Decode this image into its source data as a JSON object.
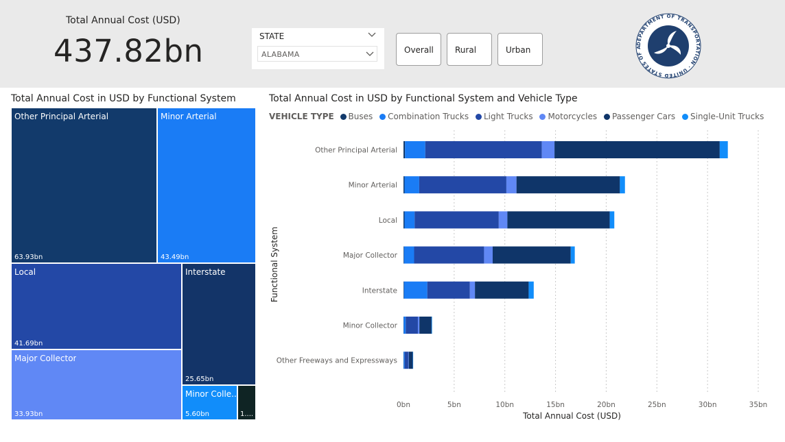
{
  "kpi": {
    "label": "Total Annual Cost (USD)",
    "value": "437.82bn"
  },
  "slicer": {
    "title": "STATE",
    "selected": "ALABAMA"
  },
  "buttons": [
    {
      "label": "Overall"
    },
    {
      "label": "Rural"
    },
    {
      "label": "Urban"
    }
  ],
  "logo": {
    "text": "DEPARTMENT OF TRANSPORTATION · UNITED STATES OF AMERICA",
    "icon": "dot-seal-icon"
  },
  "treemap": {
    "title": "Total Annual Cost in USD by Functional System",
    "tiles": [
      {
        "label": "Other Principal Arterial",
        "value": "63.93bn",
        "color": "#123a6b"
      },
      {
        "label": "Minor Arterial",
        "value": "43.49bn",
        "color": "#1a7cf5"
      },
      {
        "label": "Local",
        "value": "41.69bn",
        "color": "#2348a6"
      },
      {
        "label": "Interstate",
        "value": "25.65bn",
        "color": "#133468"
      },
      {
        "label": "Major Collector",
        "value": "33.93bn",
        "color": "#6088f5"
      },
      {
        "label": "Minor Colle...",
        "value": "5.60bn",
        "color": "#118dfa"
      },
      {
        "label": "",
        "value": "1....",
        "color": "#0f2424"
      }
    ]
  },
  "bar_chart": {
    "title": "Total Annual Cost in USD by Functional System and Vehicle Type",
    "legend_title": "VEHICLE TYPE"
  },
  "chart_data": {
    "type": "bar",
    "orientation": "horizontal",
    "stacked": true,
    "title": "Total Annual Cost in USD by Functional System and Vehicle Type",
    "xlabel": "Total Annual Cost (USD)",
    "ylabel": "Functional System",
    "xlim": [
      0,
      35
    ],
    "xticks": [
      "0bn",
      "5bn",
      "10bn",
      "15bn",
      "20bn",
      "25bn",
      "30bn",
      "35bn"
    ],
    "xtick_values": [
      0,
      5,
      10,
      15,
      20,
      25,
      30,
      35
    ],
    "categories": [
      "Other Principal Arterial",
      "Minor Arterial",
      "Local",
      "Major Collector",
      "Interstate",
      "Minor Collector",
      "Other Freeways and Expressways"
    ],
    "series": [
      {
        "name": "Buses",
        "color": "#123a6b",
        "values": [
          0.15,
          0.1,
          0.1,
          0.05,
          0.05,
          0.02,
          0.02
        ]
      },
      {
        "name": "Combination Trucks",
        "color": "#1a7cf5",
        "values": [
          2.0,
          1.45,
          1.0,
          1.0,
          2.3,
          0.2,
          0.1
        ]
      },
      {
        "name": "Light Trucks",
        "color": "#2348a6",
        "values": [
          11.5,
          8.6,
          8.3,
          6.9,
          4.2,
          1.2,
          0.35
        ]
      },
      {
        "name": "Motorcycles",
        "color": "#6088f5",
        "values": [
          1.25,
          1.0,
          0.85,
          0.85,
          0.5,
          0.15,
          0.05
        ]
      },
      {
        "name": "Passenger Cars",
        "color": "#0f3569",
        "values": [
          16.3,
          10.2,
          10.1,
          7.7,
          5.3,
          1.2,
          0.4
        ]
      },
      {
        "name": "Single-Unit Trucks",
        "color": "#118dfa",
        "values": [
          0.8,
          0.5,
          0.45,
          0.4,
          0.5,
          0.05,
          0.03
        ]
      }
    ],
    "grid": true,
    "legend_placement": "top-left"
  }
}
